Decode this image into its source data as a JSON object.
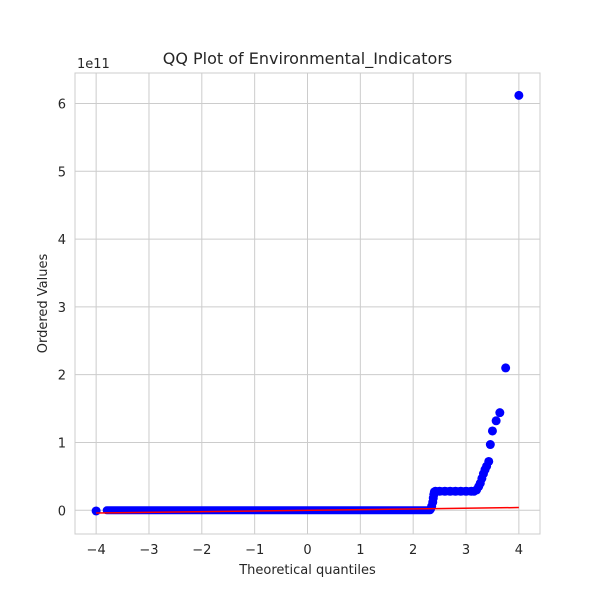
{
  "chart_data": {
    "type": "scatter",
    "title": "QQ Plot of Environmental_Indicators",
    "xlabel": "Theoretical quantiles",
    "ylabel": "Ordered Values",
    "y_offset_label": "1e11",
    "xlim": [
      -4.4,
      4.4
    ],
    "ylim": [
      -0.35,
      6.45
    ],
    "x_ticks": [
      -4,
      -3,
      -2,
      -1,
      0,
      1,
      2,
      3,
      4
    ],
    "x_tick_labels": [
      "−4",
      "−3",
      "−2",
      "−1",
      "0",
      "1",
      "2",
      "3",
      "4"
    ],
    "y_ticks": [
      0,
      1,
      2,
      3,
      4,
      5,
      6
    ],
    "y_tick_labels": [
      "0",
      "1",
      "2",
      "3",
      "4",
      "5",
      "6"
    ],
    "y_scale_note": "values in units of 1e11",
    "grid": true,
    "series": [
      {
        "kind": "points",
        "color": "#0000ff",
        "segments": [
          {
            "x_start": -3.8,
            "x_end": 2.32,
            "y": 0.0
          }
        ],
        "points": [
          {
            "x": -4.0,
            "y": -0.01
          },
          {
            "x": 2.33,
            "y": 0.02
          },
          {
            "x": 2.35,
            "y": 0.06
          },
          {
            "x": 2.37,
            "y": 0.12
          },
          {
            "x": 2.38,
            "y": 0.18
          },
          {
            "x": 2.39,
            "y": 0.23
          },
          {
            "x": 2.4,
            "y": 0.27
          },
          {
            "x": 2.42,
            "y": 0.28
          },
          {
            "x": 2.5,
            "y": 0.28
          },
          {
            "x": 2.6,
            "y": 0.28
          },
          {
            "x": 2.7,
            "y": 0.28
          },
          {
            "x": 2.8,
            "y": 0.28
          },
          {
            "x": 2.9,
            "y": 0.28
          },
          {
            "x": 3.0,
            "y": 0.28
          },
          {
            "x": 3.1,
            "y": 0.28
          },
          {
            "x": 3.15,
            "y": 0.28
          },
          {
            "x": 3.2,
            "y": 0.3
          },
          {
            "x": 3.24,
            "y": 0.35
          },
          {
            "x": 3.27,
            "y": 0.4
          },
          {
            "x": 3.3,
            "y": 0.47
          },
          {
            "x": 3.33,
            "y": 0.54
          },
          {
            "x": 3.36,
            "y": 0.6
          },
          {
            "x": 3.39,
            "y": 0.65
          },
          {
            "x": 3.43,
            "y": 0.72
          },
          {
            "x": 3.46,
            "y": 0.97
          },
          {
            "x": 3.5,
            "y": 1.17
          },
          {
            "x": 3.57,
            "y": 1.32
          },
          {
            "x": 3.64,
            "y": 1.44
          },
          {
            "x": 3.75,
            "y": 2.1
          },
          {
            "x": 4.0,
            "y": 6.12
          }
        ]
      },
      {
        "kind": "line",
        "color": "#ff0000",
        "x": [
          -4.0,
          4.0
        ],
        "y": [
          -0.04,
          0.04
        ]
      }
    ]
  }
}
